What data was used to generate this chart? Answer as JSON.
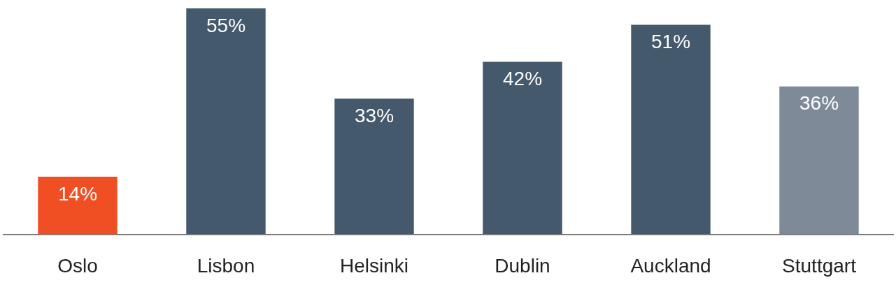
{
  "chart_data": {
    "type": "bar",
    "categories": [
      "Oslo",
      "Lisbon",
      "Helsinki",
      "Dublin",
      "Auckland",
      "Stuttgart"
    ],
    "values": [
      14,
      55,
      33,
      42,
      51,
      36
    ],
    "colors": [
      "#f04e23",
      "#44596b",
      "#44596b",
      "#44596b",
      "#44596b",
      "#7f8a98"
    ],
    "value_labels": [
      "14%",
      "55%",
      "33%",
      "42%",
      "51%",
      "36%"
    ],
    "grid": false,
    "legend": false
  }
}
